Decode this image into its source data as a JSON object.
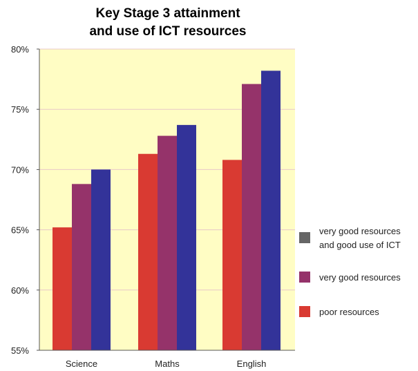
{
  "chart_data": {
    "type": "bar",
    "title_lines": [
      "Key Stage 3 attainment",
      "and use of ICT resources"
    ],
    "categories": [
      "Science",
      "Maths",
      "English"
    ],
    "series": [
      {
        "name": "poor resources",
        "color": "#d93a32",
        "values": [
          65.2,
          71.3,
          70.8
        ]
      },
      {
        "name": "very good resources",
        "color": "#95336a",
        "values": [
          68.8,
          72.8,
          77.1
        ]
      },
      {
        "name": "very good resources and good use of ICT",
        "legend_lines": [
          "very good resources",
          "and good use of ICT"
        ],
        "color": "#333399",
        "values": [
          70.0,
          73.7,
          78.2
        ]
      }
    ],
    "legend_order": [
      2,
      1,
      0
    ],
    "legend_swatch_colors": [
      "#666666",
      "#95336a",
      "#d93a32"
    ],
    "ylim": [
      55,
      80
    ],
    "yticks": [
      55,
      60,
      65,
      70,
      75,
      80
    ],
    "ytick_labels": [
      "55%",
      "60%",
      "65%",
      "70%",
      "75%",
      "80%"
    ],
    "xlabel": "",
    "ylabel": "",
    "plot_background": "#fffdc4",
    "gridlines": true,
    "gridline_color": "#e8c8c8",
    "legend_position": "right"
  }
}
